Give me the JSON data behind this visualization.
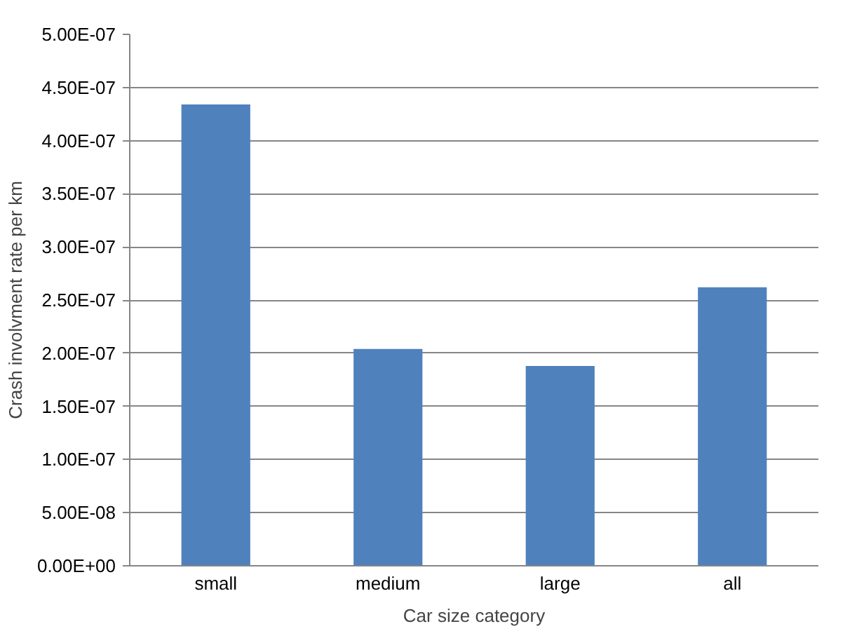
{
  "chart_data": {
    "type": "bar",
    "xlabel": "Car size category",
    "ylabel": "Crash involvment rate per km",
    "categories": [
      "small",
      "medium",
      "large",
      "all"
    ],
    "values": [
      4.34e-07,
      2.04e-07,
      1.88e-07,
      2.62e-07
    ],
    "color": "#4f81bd",
    "ylim": [
      0,
      5e-07
    ],
    "yticks": [
      {
        "value": 0,
        "label": "0.00E+00"
      },
      {
        "value": 5e-08,
        "label": "5.00E-08"
      },
      {
        "value": 1e-07,
        "label": "1.00E-07"
      },
      {
        "value": 1.5e-07,
        "label": "1.50E-07"
      },
      {
        "value": 2e-07,
        "label": "2.00E-07"
      },
      {
        "value": 2.5e-07,
        "label": "2.50E-07"
      },
      {
        "value": 3e-07,
        "label": "3.00E-07"
      },
      {
        "value": 3.5e-07,
        "label": "3.50E-07"
      },
      {
        "value": 4e-07,
        "label": "4.00E-07"
      },
      {
        "value": 4.5e-07,
        "label": "4.50E-07"
      },
      {
        "value": 5e-07,
        "label": "5.00E-07"
      }
    ],
    "grid": "y"
  }
}
